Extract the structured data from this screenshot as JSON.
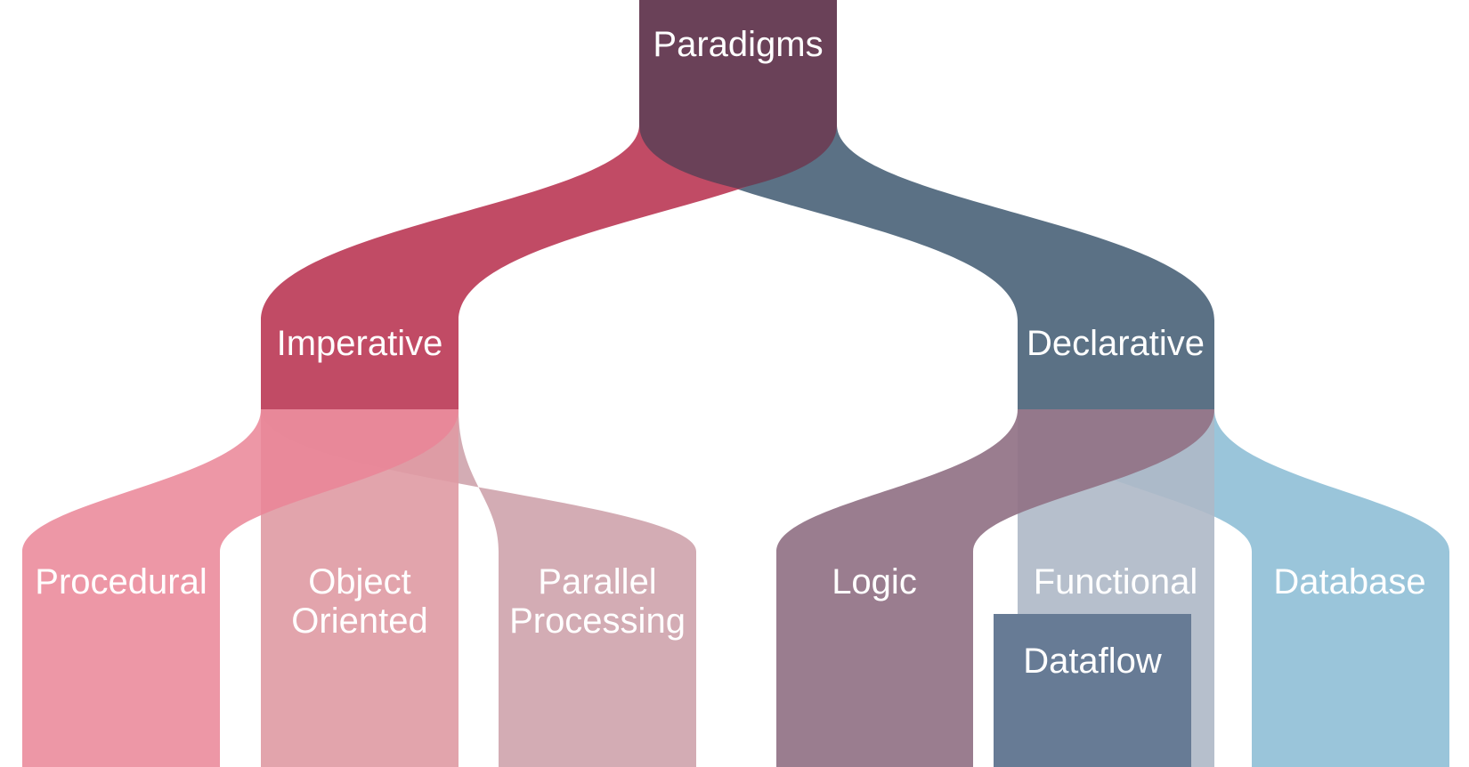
{
  "diagram": {
    "root": {
      "label": "Paradigms",
      "color": "#6a4158"
    },
    "imperative": {
      "label": "Imperative",
      "color": "#bf4560"
    },
    "declarative": {
      "label": "Declarative",
      "color": "#566c81"
    },
    "procedural": {
      "label": "Procedural",
      "color": "#ea8596"
    },
    "object_oriented": {
      "line1": "Object",
      "line2": "Oriented",
      "color": "#df9aa3"
    },
    "parallel_processing": {
      "line1": "Parallel",
      "line2": "Processing",
      "color": "#d1a8b0"
    },
    "logic": {
      "label": "Logic",
      "color": "#917285"
    },
    "functional": {
      "label": "Functional",
      "color": "#aeb8c6"
    },
    "dataflow": {
      "label": "Dataflow",
      "color": "#677b95"
    },
    "database": {
      "label": "Database",
      "color": "#8fbfd6"
    }
  }
}
